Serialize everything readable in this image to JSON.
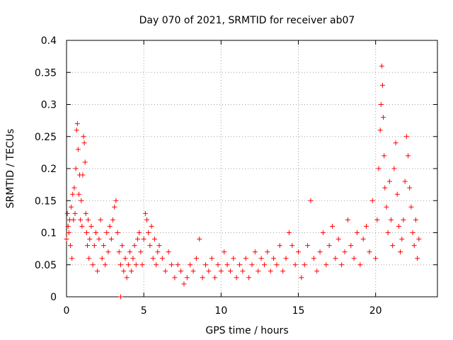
{
  "chart_data": {
    "type": "scatter",
    "title": "Day 070 of 2021, SRMTID for receiver ab07",
    "xlabel": "GPS time / hours",
    "ylabel": "SRMTID / TECUs",
    "xlim": [
      0,
      24
    ],
    "ylim": [
      0,
      0.4
    ],
    "xticks": [
      0,
      5,
      10,
      15,
      20
    ],
    "xtick_labels": [
      "0",
      "5",
      "10",
      "15",
      "20"
    ],
    "yticks": [
      0,
      0.05,
      0.1,
      0.15,
      0.2,
      0.25,
      0.3,
      0.35,
      0.4
    ],
    "ytick_labels": [
      "0",
      "0.05",
      "0.1",
      "0.15",
      "0.2",
      "0.25",
      "0.3",
      "0.35",
      "0.4"
    ],
    "grid": true,
    "marker": "plus",
    "color": "#ff0000",
    "series": [
      {
        "name": "SRMTID",
        "points": [
          [
            0.0,
            0.09
          ],
          [
            0.05,
            0.13
          ],
          [
            0.1,
            0.11
          ],
          [
            0.15,
            0.1
          ],
          [
            0.2,
            0.12
          ],
          [
            0.25,
            0.08
          ],
          [
            0.3,
            0.14
          ],
          [
            0.35,
            0.06
          ],
          [
            0.4,
            0.16
          ],
          [
            0.45,
            0.12
          ],
          [
            0.5,
            0.17
          ],
          [
            0.55,
            0.13
          ],
          [
            0.6,
            0.2
          ],
          [
            0.65,
            0.26
          ],
          [
            0.7,
            0.27
          ],
          [
            0.75,
            0.23
          ],
          [
            0.8,
            0.16
          ],
          [
            0.85,
            0.19
          ],
          [
            0.9,
            0.12
          ],
          [
            0.95,
            0.15
          ],
          [
            1.0,
            0.11
          ],
          [
            1.05,
            0.19
          ],
          [
            1.1,
            0.25
          ],
          [
            1.15,
            0.24
          ],
          [
            1.2,
            0.21
          ],
          [
            1.25,
            0.13
          ],
          [
            1.3,
            0.1
          ],
          [
            1.35,
            0.08
          ],
          [
            1.4,
            0.12
          ],
          [
            1.45,
            0.06
          ],
          [
            1.5,
            0.09
          ],
          [
            1.6,
            0.11
          ],
          [
            1.7,
            0.05
          ],
          [
            1.8,
            0.08
          ],
          [
            1.9,
            0.1
          ],
          [
            2.0,
            0.04
          ],
          [
            2.1,
            0.09
          ],
          [
            2.2,
            0.12
          ],
          [
            2.3,
            0.06
          ],
          [
            2.4,
            0.08
          ],
          [
            2.5,
            0.05
          ],
          [
            2.6,
            0.1
          ],
          [
            2.7,
            0.07
          ],
          [
            2.8,
            0.11
          ],
          [
            2.9,
            0.09
          ],
          [
            3.0,
            0.12
          ],
          [
            3.1,
            0.14
          ],
          [
            3.2,
            0.15
          ],
          [
            3.3,
            0.1
          ],
          [
            3.4,
            0.07
          ],
          [
            3.5,
            0.05
          ],
          [
            3.6,
            0.08
          ],
          [
            3.7,
            0.04
          ],
          [
            3.8,
            0.06
          ],
          [
            3.9,
            0.03
          ],
          [
            4.0,
            0.05
          ],
          [
            4.1,
            0.07
          ],
          [
            4.2,
            0.04
          ],
          [
            4.3,
            0.06
          ],
          [
            4.4,
            0.08
          ],
          [
            4.5,
            0.05
          ],
          [
            4.6,
            0.09
          ],
          [
            4.7,
            0.1
          ],
          [
            4.8,
            0.07
          ],
          [
            4.9,
            0.05
          ],
          [
            5.0,
            0.09
          ],
          [
            5.1,
            0.13
          ],
          [
            5.2,
            0.12
          ],
          [
            5.3,
            0.1
          ],
          [
            5.4,
            0.08
          ],
          [
            5.5,
            0.11
          ],
          [
            5.6,
            0.06
          ],
          [
            5.7,
            0.09
          ],
          [
            5.8,
            0.05
          ],
          [
            5.9,
            0.07
          ],
          [
            6.0,
            0.08
          ],
          [
            6.2,
            0.06
          ],
          [
            6.4,
            0.04
          ],
          [
            6.6,
            0.07
          ],
          [
            6.8,
            0.05
          ],
          [
            7.0,
            0.03
          ],
          [
            7.2,
            0.05
          ],
          [
            7.4,
            0.04
          ],
          [
            7.6,
            0.02
          ],
          [
            7.8,
            0.03
          ],
          [
            8.0,
            0.05
          ],
          [
            8.2,
            0.04
          ],
          [
            8.4,
            0.06
          ],
          [
            8.6,
            0.09
          ],
          [
            8.8,
            0.03
          ],
          [
            9.0,
            0.05
          ],
          [
            9.2,
            0.04
          ],
          [
            9.4,
            0.06
          ],
          [
            9.6,
            0.03
          ],
          [
            9.8,
            0.05
          ],
          [
            10.0,
            0.04
          ],
          [
            10.2,
            0.07
          ],
          [
            10.4,
            0.05
          ],
          [
            10.6,
            0.04
          ],
          [
            10.8,
            0.06
          ],
          [
            11.0,
            0.03
          ],
          [
            11.2,
            0.05
          ],
          [
            11.4,
            0.04
          ],
          [
            11.6,
            0.06
          ],
          [
            11.8,
            0.03
          ],
          [
            12.0,
            0.05
          ],
          [
            12.2,
            0.07
          ],
          [
            12.4,
            0.04
          ],
          [
            12.6,
            0.06
          ],
          [
            12.8,
            0.05
          ],
          [
            13.0,
            0.07
          ],
          [
            13.2,
            0.04
          ],
          [
            13.4,
            0.06
          ],
          [
            13.6,
            0.05
          ],
          [
            13.8,
            0.08
          ],
          [
            14.0,
            0.04
          ],
          [
            14.2,
            0.06
          ],
          [
            14.4,
            0.1
          ],
          [
            14.6,
            0.08
          ],
          [
            14.8,
            0.05
          ],
          [
            15.0,
            0.07
          ],
          [
            15.2,
            0.03
          ],
          [
            15.4,
            0.05
          ],
          [
            15.6,
            0.08
          ],
          [
            15.8,
            0.15
          ],
          [
            16.0,
            0.06
          ],
          [
            16.2,
            0.04
          ],
          [
            16.4,
            0.07
          ],
          [
            16.6,
            0.1
          ],
          [
            16.8,
            0.05
          ],
          [
            17.0,
            0.08
          ],
          [
            17.2,
            0.11
          ],
          [
            17.4,
            0.06
          ],
          [
            17.6,
            0.09
          ],
          [
            17.8,
            0.05
          ],
          [
            18.0,
            0.07
          ],
          [
            18.2,
            0.12
          ],
          [
            18.4,
            0.08
          ],
          [
            18.6,
            0.06
          ],
          [
            18.8,
            0.1
          ],
          [
            19.0,
            0.05
          ],
          [
            19.2,
            0.09
          ],
          [
            19.4,
            0.11
          ],
          [
            19.6,
            0.07
          ],
          [
            19.8,
            0.15
          ],
          [
            20.0,
            0.06
          ],
          [
            20.1,
            0.12
          ],
          [
            20.2,
            0.2
          ],
          [
            20.3,
            0.26
          ],
          [
            20.35,
            0.3
          ],
          [
            20.4,
            0.36
          ],
          [
            20.45,
            0.33
          ],
          [
            20.5,
            0.28
          ],
          [
            20.55,
            0.22
          ],
          [
            20.6,
            0.17
          ],
          [
            20.7,
            0.14
          ],
          [
            20.8,
            0.1
          ],
          [
            20.9,
            0.18
          ],
          [
            21.0,
            0.12
          ],
          [
            21.1,
            0.08
          ],
          [
            21.2,
            0.2
          ],
          [
            21.3,
            0.24
          ],
          [
            21.4,
            0.16
          ],
          [
            21.5,
            0.11
          ],
          [
            21.6,
            0.07
          ],
          [
            21.7,
            0.09
          ],
          [
            21.8,
            0.12
          ],
          [
            21.9,
            0.18
          ],
          [
            22.0,
            0.25
          ],
          [
            22.1,
            0.22
          ],
          [
            22.2,
            0.17
          ],
          [
            22.3,
            0.14
          ],
          [
            22.4,
            0.1
          ],
          [
            22.5,
            0.08
          ],
          [
            22.6,
            0.12
          ],
          [
            22.7,
            0.06
          ],
          [
            22.8,
            0.09
          ],
          [
            3.5,
            0.0
          ]
        ]
      }
    ]
  }
}
